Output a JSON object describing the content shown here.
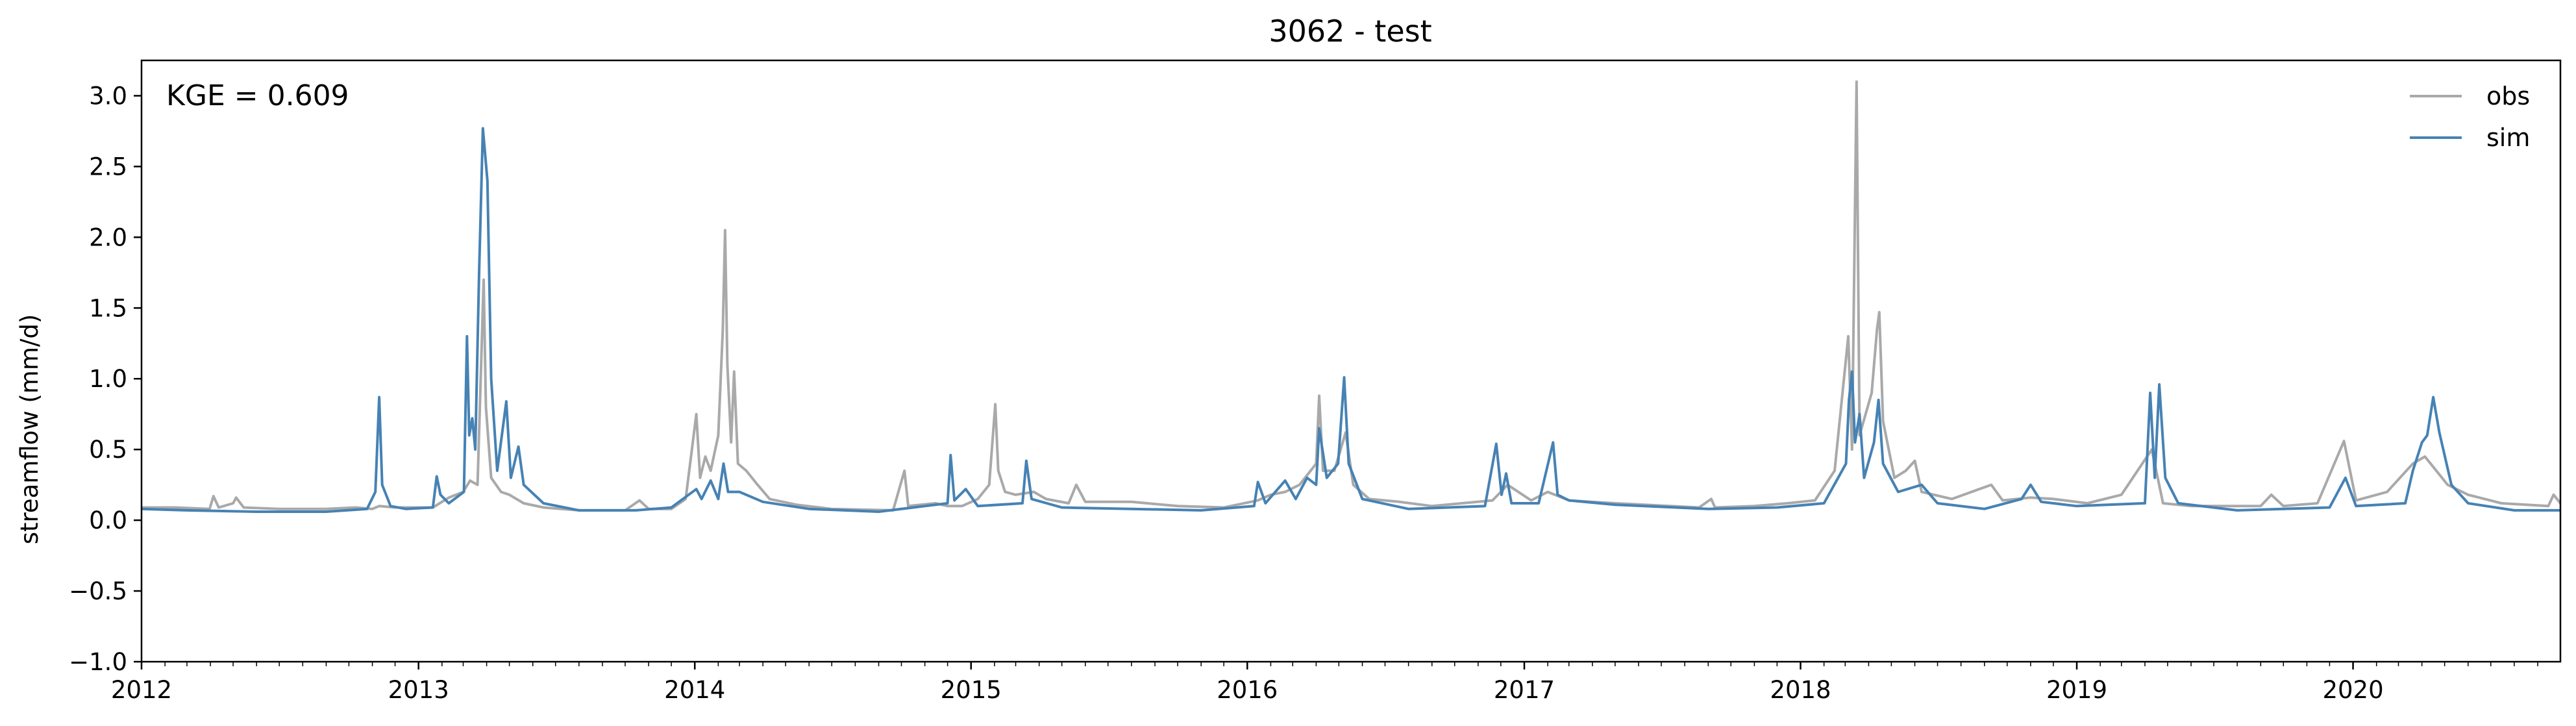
{
  "chart_data": {
    "type": "line",
    "title": "3062 - test",
    "xlabel": "",
    "ylabel": "streamflow (mm/d)",
    "annotation": "KGE = 0.609",
    "xlim": [
      "2012-01-01",
      "2020-10-01"
    ],
    "ylim": [
      -1.0,
      3.25
    ],
    "x_ticks": [
      "2012",
      "2013",
      "2014",
      "2015",
      "2016",
      "2017",
      "2018",
      "2019",
      "2020"
    ],
    "y_ticks": [
      "−1.0",
      "−0.5",
      "0.0",
      "0.5",
      "1.0",
      "1.5",
      "2.0",
      "2.5",
      "3.0"
    ],
    "y_tick_values": [
      -1.0,
      -0.5,
      0.0,
      0.5,
      1.0,
      1.5,
      2.0,
      2.5,
      3.0
    ],
    "grid": false,
    "legend_position": "top-right",
    "series": [
      {
        "name": "obs",
        "color": "#a9a9a9",
        "points": [
          [
            "2012-01-01",
            0.09
          ],
          [
            "2012-02-15",
            0.09
          ],
          [
            "2012-03-31",
            0.08
          ],
          [
            "2012-04-05",
            0.17
          ],
          [
            "2012-04-12",
            0.09
          ],
          [
            "2012-05-01",
            0.12
          ],
          [
            "2012-05-05",
            0.16
          ],
          [
            "2012-05-15",
            0.09
          ],
          [
            "2012-07-01",
            0.08
          ],
          [
            "2012-09-01",
            0.08
          ],
          [
            "2012-10-10",
            0.09
          ],
          [
            "2012-11-01",
            0.08
          ],
          [
            "2012-11-10",
            0.1
          ],
          [
            "2012-12-01",
            0.09
          ],
          [
            "2013-01-20",
            0.09
          ],
          [
            "2013-02-10",
            0.16
          ],
          [
            "2013-03-01",
            0.2
          ],
          [
            "2013-03-10",
            0.28
          ],
          [
            "2013-03-20",
            0.25
          ],
          [
            "2013-03-28",
            1.7
          ],
          [
            "2013-03-31",
            0.8
          ],
          [
            "2013-04-07",
            0.3
          ],
          [
            "2013-04-20",
            0.2
          ],
          [
            "2013-05-01",
            0.18
          ],
          [
            "2013-05-20",
            0.12
          ],
          [
            "2013-06-15",
            0.09
          ],
          [
            "2013-08-01",
            0.07
          ],
          [
            "2013-10-01",
            0.07
          ],
          [
            "2013-10-20",
            0.14
          ],
          [
            "2013-11-01",
            0.08
          ],
          [
            "2013-12-01",
            0.08
          ],
          [
            "2013-12-20",
            0.15
          ],
          [
            "2014-01-03",
            0.75
          ],
          [
            "2014-01-08",
            0.3
          ],
          [
            "2014-01-15",
            0.45
          ],
          [
            "2014-01-22",
            0.35
          ],
          [
            "2014-02-01",
            0.6
          ],
          [
            "2014-02-07",
            1.35
          ],
          [
            "2014-02-10",
            2.05
          ],
          [
            "2014-02-13",
            1.1
          ],
          [
            "2014-02-18",
            0.55
          ],
          [
            "2014-02-22",
            1.05
          ],
          [
            "2014-02-27",
            0.4
          ],
          [
            "2014-03-10",
            0.35
          ],
          [
            "2014-03-25",
            0.25
          ],
          [
            "2014-04-10",
            0.15
          ],
          [
            "2014-05-15",
            0.11
          ],
          [
            "2014-07-01",
            0.08
          ],
          [
            "2014-09-20",
            0.07
          ],
          [
            "2014-10-05",
            0.35
          ],
          [
            "2014-10-10",
            0.1
          ],
          [
            "2014-11-15",
            0.12
          ],
          [
            "2014-12-01",
            0.1
          ],
          [
            "2014-12-20",
            0.1
          ],
          [
            "2015-01-10",
            0.15
          ],
          [
            "2015-01-25",
            0.25
          ],
          [
            "2015-02-02",
            0.82
          ],
          [
            "2015-02-06",
            0.35
          ],
          [
            "2015-02-15",
            0.2
          ],
          [
            "2015-03-01",
            0.18
          ],
          [
            "2015-03-25",
            0.2
          ],
          [
            "2015-04-10",
            0.15
          ],
          [
            "2015-05-10",
            0.12
          ],
          [
            "2015-05-20",
            0.25
          ],
          [
            "2015-06-01",
            0.13
          ],
          [
            "2015-08-01",
            0.13
          ],
          [
            "2015-10-01",
            0.1
          ],
          [
            "2015-12-01",
            0.09
          ],
          [
            "2016-01-15",
            0.14
          ],
          [
            "2016-02-01",
            0.18
          ],
          [
            "2016-02-20",
            0.2
          ],
          [
            "2016-03-10",
            0.25
          ],
          [
            "2016-04-01",
            0.4
          ],
          [
            "2016-04-05",
            0.88
          ],
          [
            "2016-04-10",
            0.35
          ],
          [
            "2016-04-25",
            0.35
          ],
          [
            "2016-05-10",
            0.62
          ],
          [
            "2016-05-20",
            0.25
          ],
          [
            "2016-06-10",
            0.15
          ],
          [
            "2016-07-20",
            0.13
          ],
          [
            "2016-09-01",
            0.1
          ],
          [
            "2016-11-20",
            0.14
          ],
          [
            "2016-12-10",
            0.25
          ],
          [
            "2017-01-10",
            0.14
          ],
          [
            "2017-02-01",
            0.2
          ],
          [
            "2017-03-01",
            0.14
          ],
          [
            "2017-05-01",
            0.12
          ],
          [
            "2017-08-20",
            0.09
          ],
          [
            "2017-09-05",
            0.15
          ],
          [
            "2017-09-10",
            0.09
          ],
          [
            "2017-11-01",
            0.1
          ],
          [
            "2017-12-15",
            0.12
          ],
          [
            "2018-01-20",
            0.14
          ],
          [
            "2018-02-15",
            0.35
          ],
          [
            "2018-03-05",
            1.3
          ],
          [
            "2018-03-10",
            0.5
          ],
          [
            "2018-03-16",
            3.1
          ],
          [
            "2018-03-20",
            0.6
          ],
          [
            "2018-04-05",
            0.9
          ],
          [
            "2018-04-12",
            1.35
          ],
          [
            "2018-04-15",
            1.47
          ],
          [
            "2018-04-20",
            0.7
          ],
          [
            "2018-05-05",
            0.3
          ],
          [
            "2018-05-20",
            0.35
          ],
          [
            "2018-06-01",
            0.42
          ],
          [
            "2018-06-10",
            0.2
          ],
          [
            "2018-07-20",
            0.15
          ],
          [
            "2018-09-10",
            0.25
          ],
          [
            "2018-09-25",
            0.14
          ],
          [
            "2018-11-01",
            0.16
          ],
          [
            "2018-12-01",
            0.15
          ],
          [
            "2019-01-15",
            0.12
          ],
          [
            "2019-03-01",
            0.18
          ],
          [
            "2019-04-10",
            0.5
          ],
          [
            "2019-04-25",
            0.12
          ],
          [
            "2019-06-01",
            0.1
          ],
          [
            "2019-09-01",
            0.1
          ],
          [
            "2019-09-15",
            0.18
          ],
          [
            "2019-10-01",
            0.1
          ],
          [
            "2019-11-15",
            0.12
          ],
          [
            "2019-12-20",
            0.56
          ],
          [
            "2020-01-05",
            0.14
          ],
          [
            "2020-02-15",
            0.2
          ],
          [
            "2020-03-20",
            0.4
          ],
          [
            "2020-04-05",
            0.45
          ],
          [
            "2020-04-20",
            0.35
          ],
          [
            "2020-05-05",
            0.25
          ],
          [
            "2020-06-01",
            0.18
          ],
          [
            "2020-07-15",
            0.12
          ],
          [
            "2020-09-15",
            0.1
          ],
          [
            "2020-09-22",
            0.18
          ],
          [
            "2020-10-01",
            0.12
          ]
        ]
      },
      {
        "name": "sim",
        "color": "#4682b4",
        "points": [
          [
            "2012-01-01",
            0.08
          ],
          [
            "2012-03-01",
            0.07
          ],
          [
            "2012-06-01",
            0.06
          ],
          [
            "2012-09-01",
            0.06
          ],
          [
            "2012-10-25",
            0.08
          ],
          [
            "2012-11-05",
            0.2
          ],
          [
            "2012-11-10",
            0.87
          ],
          [
            "2012-11-14",
            0.25
          ],
          [
            "2012-11-25",
            0.1
          ],
          [
            "2012-12-15",
            0.08
          ],
          [
            "2013-01-20",
            0.09
          ],
          [
            "2013-01-25",
            0.31
          ],
          [
            "2013-01-30",
            0.18
          ],
          [
            "2013-02-10",
            0.12
          ],
          [
            "2013-03-02",
            0.2
          ],
          [
            "2013-03-06",
            1.3
          ],
          [
            "2013-03-09",
            0.6
          ],
          [
            "2013-03-13",
            0.72
          ],
          [
            "2013-03-17",
            0.5
          ],
          [
            "2013-03-22",
            1.75
          ],
          [
            "2013-03-27",
            2.77
          ],
          [
            "2013-04-02",
            2.4
          ],
          [
            "2013-04-07",
            1.0
          ],
          [
            "2013-04-15",
            0.35
          ],
          [
            "2013-04-27",
            0.84
          ],
          [
            "2013-05-03",
            0.3
          ],
          [
            "2013-05-13",
            0.52
          ],
          [
            "2013-05-20",
            0.25
          ],
          [
            "2013-06-15",
            0.12
          ],
          [
            "2013-08-01",
            0.07
          ],
          [
            "2013-10-15",
            0.07
          ],
          [
            "2013-12-01",
            0.09
          ],
          [
            "2014-01-03",
            0.22
          ],
          [
            "2014-01-10",
            0.15
          ],
          [
            "2014-01-22",
            0.28
          ],
          [
            "2014-02-01",
            0.15
          ],
          [
            "2014-02-08",
            0.4
          ],
          [
            "2014-02-14",
            0.2
          ],
          [
            "2014-03-01",
            0.2
          ],
          [
            "2014-04-01",
            0.13
          ],
          [
            "2014-06-01",
            0.08
          ],
          [
            "2014-09-01",
            0.06
          ],
          [
            "2014-11-01",
            0.1
          ],
          [
            "2014-12-01",
            0.12
          ],
          [
            "2014-12-05",
            0.46
          ],
          [
            "2014-12-10",
            0.14
          ],
          [
            "2014-12-25",
            0.22
          ],
          [
            "2015-01-10",
            0.1
          ],
          [
            "2015-03-10",
            0.12
          ],
          [
            "2015-03-15",
            0.42
          ],
          [
            "2015-03-22",
            0.15
          ],
          [
            "2015-05-01",
            0.09
          ],
          [
            "2015-08-01",
            0.08
          ],
          [
            "2015-11-01",
            0.07
          ],
          [
            "2016-01-10",
            0.1
          ],
          [
            "2016-01-15",
            0.27
          ],
          [
            "2016-01-25",
            0.12
          ],
          [
            "2016-02-20",
            0.28
          ],
          [
            "2016-03-05",
            0.15
          ],
          [
            "2016-03-20",
            0.3
          ],
          [
            "2016-04-01",
            0.25
          ],
          [
            "2016-04-05",
            0.65
          ],
          [
            "2016-04-15",
            0.3
          ],
          [
            "2016-04-30",
            0.4
          ],
          [
            "2016-05-08",
            1.01
          ],
          [
            "2016-05-14",
            0.4
          ],
          [
            "2016-06-01",
            0.15
          ],
          [
            "2016-08-01",
            0.08
          ],
          [
            "2016-11-10",
            0.1
          ],
          [
            "2016-11-25",
            0.54
          ],
          [
            "2016-12-02",
            0.18
          ],
          [
            "2016-12-08",
            0.33
          ],
          [
            "2016-12-15",
            0.12
          ],
          [
            "2017-01-20",
            0.12
          ],
          [
            "2017-02-08",
            0.55
          ],
          [
            "2017-02-14",
            0.18
          ],
          [
            "2017-03-01",
            0.14
          ],
          [
            "2017-05-01",
            0.11
          ],
          [
            "2017-09-01",
            0.08
          ],
          [
            "2017-12-01",
            0.09
          ],
          [
            "2018-02-01",
            0.12
          ],
          [
            "2018-03-02",
            0.4
          ],
          [
            "2018-03-06",
            0.85
          ],
          [
            "2018-03-10",
            1.05
          ],
          [
            "2018-03-14",
            0.55
          ],
          [
            "2018-03-20",
            0.75
          ],
          [
            "2018-03-26",
            0.3
          ],
          [
            "2018-04-08",
            0.55
          ],
          [
            "2018-04-14",
            0.85
          ],
          [
            "2018-04-20",
            0.4
          ],
          [
            "2018-05-10",
            0.2
          ],
          [
            "2018-06-10",
            0.25
          ],
          [
            "2018-07-01",
            0.12
          ],
          [
            "2018-09-01",
            0.08
          ],
          [
            "2018-10-20",
            0.15
          ],
          [
            "2018-11-01",
            0.25
          ],
          [
            "2018-11-15",
            0.13
          ],
          [
            "2019-01-01",
            0.1
          ],
          [
            "2019-04-01",
            0.12
          ],
          [
            "2019-04-08",
            0.9
          ],
          [
            "2019-04-14",
            0.3
          ],
          [
            "2019-04-20",
            0.96
          ],
          [
            "2019-04-28",
            0.3
          ],
          [
            "2019-05-15",
            0.12
          ],
          [
            "2019-08-01",
            0.07
          ],
          [
            "2019-12-01",
            0.09
          ],
          [
            "2019-12-22",
            0.3
          ],
          [
            "2020-01-05",
            0.1
          ],
          [
            "2020-03-10",
            0.12
          ],
          [
            "2020-03-20",
            0.35
          ],
          [
            "2020-04-01",
            0.55
          ],
          [
            "2020-04-08",
            0.6
          ],
          [
            "2020-04-16",
            0.87
          ],
          [
            "2020-04-24",
            0.62
          ],
          [
            "2020-05-10",
            0.25
          ],
          [
            "2020-06-01",
            0.12
          ],
          [
            "2020-08-01",
            0.07
          ],
          [
            "2020-10-01",
            0.07
          ]
        ]
      }
    ]
  }
}
